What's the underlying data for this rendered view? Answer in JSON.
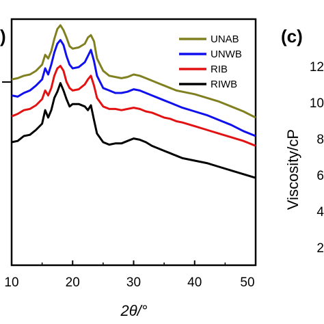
{
  "panel_left_label": ")",
  "panel_right_label": "(c)",
  "right_panel": {
    "ylabel": "Viscosity/cP",
    "visible_tick_labels": [
      "12",
      "10",
      "8",
      "6",
      "4",
      "2"
    ]
  },
  "chart_data": {
    "type": "line",
    "xlabel": "2θ/°",
    "ylabel": "",
    "xlim": [
      10,
      50
    ],
    "ylim": [
      0,
      10
    ],
    "x_ticks": [
      10,
      20,
      30,
      40,
      50
    ],
    "x_tick_labels": [
      "10",
      "20",
      "30",
      "40",
      "50"
    ],
    "grid": false,
    "legend_position": "top-right",
    "x": [
      10,
      11,
      12,
      13,
      14,
      15,
      15.5,
      16,
      16.5,
      17,
      17.5,
      18,
      18.5,
      19,
      19.5,
      20,
      21,
      22,
      22.5,
      23,
      23.5,
      24,
      25,
      26,
      27,
      28,
      29,
      30,
      31,
      32,
      33,
      34,
      35,
      36,
      37,
      38,
      40,
      42,
      44,
      46,
      48,
      50
    ],
    "series": [
      {
        "name": "UNAB",
        "color": "#808020",
        "values": [
          7.55,
          7.6,
          7.7,
          7.75,
          7.9,
          8.15,
          8.55,
          8.4,
          8.7,
          9.2,
          9.6,
          9.75,
          9.55,
          9.25,
          8.9,
          8.8,
          8.85,
          9.0,
          9.25,
          9.35,
          9.1,
          8.4,
          7.9,
          7.7,
          7.65,
          7.6,
          7.65,
          7.75,
          7.7,
          7.6,
          7.5,
          7.4,
          7.3,
          7.2,
          7.1,
          7.05,
          6.95,
          6.8,
          6.65,
          6.45,
          6.25,
          6.0
        ]
      },
      {
        "name": "UNWB",
        "color": "#1010ee",
        "values": [
          6.9,
          6.85,
          7.0,
          7.1,
          7.3,
          7.55,
          8.0,
          7.75,
          8.15,
          8.65,
          9.0,
          9.15,
          8.95,
          8.5,
          8.15,
          8.0,
          8.05,
          8.25,
          8.5,
          8.75,
          8.3,
          7.7,
          7.2,
          7.1,
          7.0,
          7.0,
          7.05,
          7.15,
          7.1,
          7.0,
          6.9,
          6.8,
          6.7,
          6.6,
          6.5,
          6.4,
          6.25,
          6.1,
          5.9,
          5.7,
          5.45,
          5.25
        ]
      },
      {
        "name": "RIB",
        "color": "#e31212",
        "values": [
          6.05,
          6.15,
          6.3,
          6.35,
          6.5,
          6.75,
          7.1,
          6.9,
          7.2,
          7.7,
          8.0,
          8.1,
          7.9,
          7.45,
          7.2,
          7.1,
          7.15,
          7.35,
          7.55,
          7.7,
          7.3,
          6.8,
          6.45,
          6.35,
          6.35,
          6.3,
          6.35,
          6.4,
          6.35,
          6.25,
          6.2,
          6.1,
          6.0,
          5.95,
          5.85,
          5.8,
          5.65,
          5.5,
          5.35,
          5.2,
          5.05,
          4.85
        ]
      },
      {
        "name": "RIWB",
        "color": "#000000",
        "values": [
          5.0,
          5.05,
          5.25,
          5.3,
          5.5,
          5.75,
          6.3,
          6.0,
          6.3,
          6.8,
          7.05,
          7.4,
          7.1,
          6.75,
          6.45,
          6.55,
          6.55,
          6.45,
          6.3,
          6.5,
          5.9,
          5.35,
          5.0,
          4.9,
          4.95,
          4.95,
          5.05,
          5.15,
          5.1,
          5.0,
          4.85,
          4.75,
          4.65,
          4.55,
          4.45,
          4.35,
          4.25,
          4.15,
          4.0,
          3.85,
          3.7,
          3.55
        ]
      }
    ]
  }
}
